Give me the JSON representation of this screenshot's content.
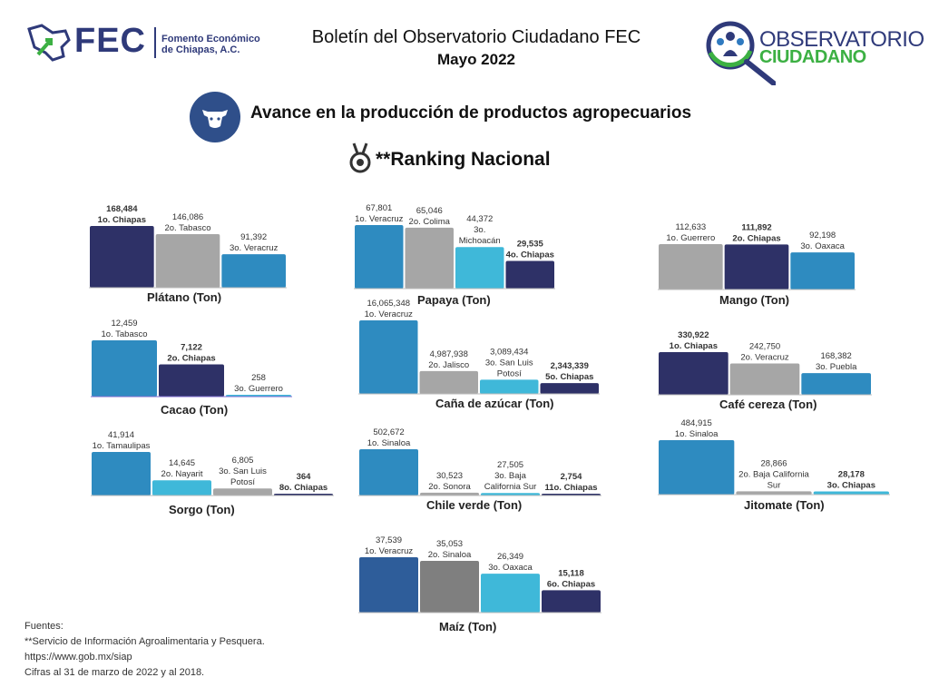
{
  "header": {
    "title": "Boletín del Observatorio Ciudadano FEC",
    "subtitle": "Mayo 2022",
    "fec_mark": "FEC",
    "fec_name_line1": "Fomento Económico",
    "fec_name_line2": "de Chiapas, A.C.",
    "obs_line1": "OBSERVATORIO",
    "obs_line2": "CIUDADANO"
  },
  "section_title": "Avance en la producción de productos agropecuarios",
  "ranking_title": "**Ranking Nacional",
  "colors": {
    "dark": "#2e3167",
    "gray": "#a6a6a6",
    "blue": "#2e8bc0",
    "light": "#3fb8d9",
    "navy": "#2e5d9a",
    "darkgray": "#7f7f7f"
  },
  "chart_data": [
    {
      "type": "bar",
      "title": "Plátano (Ton)",
      "bars": [
        {
          "value": 168484,
          "label": "168,484",
          "rank": "1o.  Chiapas",
          "color": "dark",
          "bold": true
        },
        {
          "value": 146086,
          "label": "146,086",
          "rank": "2o. Tabasco",
          "color": "gray",
          "bold": false
        },
        {
          "value": 91392,
          "label": "91,392",
          "rank": "3o. Veracruz",
          "color": "blue",
          "bold": false
        }
      ]
    },
    {
      "type": "bar",
      "title": "Papaya (Ton)",
      "bars": [
        {
          "value": 67801,
          "label": "67,801",
          "rank": "1o. Veracruz",
          "color": "blue",
          "bold": false
        },
        {
          "value": 65046,
          "label": "65,046",
          "rank": "2o. Colima",
          "color": "gray",
          "bold": false
        },
        {
          "value": 44372,
          "label": "44,372",
          "rank": "3o.\nMichoacán",
          "color": "light",
          "bold": false
        },
        {
          "value": 29535,
          "label": "29,535",
          "rank": "4o. Chiapas",
          "color": "dark",
          "bold": true
        }
      ]
    },
    {
      "type": "bar",
      "title": "Mango (Ton)",
      "bars": [
        {
          "value": 112633,
          "label": "112,633",
          "rank": "1o. Guerrero",
          "color": "gray",
          "bold": false
        },
        {
          "value": 111892,
          "label": "111,892",
          "rank": "2o. Chiapas",
          "color": "dark",
          "bold": true
        },
        {
          "value": 92198,
          "label": "92,198",
          "rank": "3o. Oaxaca",
          "color": "blue",
          "bold": false
        }
      ]
    },
    {
      "type": "bar",
      "title": "Cacao (Ton)",
      "bars": [
        {
          "value": 12459,
          "label": "12,459",
          "rank": "1o. Tabasco",
          "color": "blue",
          "bold": false
        },
        {
          "value": 7122,
          "label": "7,122",
          "rank": "2o. Chiapas",
          "color": "dark",
          "bold": true
        },
        {
          "value": 258,
          "label": "258",
          "rank": "3o. Guerrero",
          "color": "light",
          "bold": false
        }
      ]
    },
    {
      "type": "bar",
      "title": "Caña de azúcar  (Ton)",
      "bars": [
        {
          "value": 16065348,
          "label": "16,065,348",
          "rank": "1o. Veracruz",
          "color": "blue",
          "bold": false
        },
        {
          "value": 4987938,
          "label": "4,987,938",
          "rank": "2o. Jalisco",
          "color": "gray",
          "bold": false
        },
        {
          "value": 3089434,
          "label": "3,089,434",
          "rank": "3o. San Luis\nPotosí",
          "color": "light",
          "bold": false
        },
        {
          "value": 2343339,
          "label": "2,343,339",
          "rank": "5o. Chiapas",
          "color": "dark",
          "bold": true
        }
      ]
    },
    {
      "type": "bar",
      "title": "Café cereza (Ton)",
      "bars": [
        {
          "value": 330922,
          "label": "330,922",
          "rank": "1o. Chiapas",
          "color": "dark",
          "bold": true
        },
        {
          "value": 242750,
          "label": "242,750",
          "rank": "2o. Veracruz",
          "color": "gray",
          "bold": false
        },
        {
          "value": 168382,
          "label": "168,382",
          "rank": "3o. Puebla",
          "color": "blue",
          "bold": false
        }
      ]
    },
    {
      "type": "bar",
      "title": "Sorgo  (Ton)",
      "bars": [
        {
          "value": 41914,
          "label": "41,914",
          "rank": "1o. Tamaulipas",
          "color": "blue",
          "bold": false
        },
        {
          "value": 14645,
          "label": "14,645",
          "rank": "2o. Nayarit",
          "color": "light",
          "bold": false
        },
        {
          "value": 6805,
          "label": "6,805",
          "rank": "3o. San Luis\nPotosí",
          "color": "gray",
          "bold": false
        },
        {
          "value": 364,
          "label": "364",
          "rank": "8o. Chiapas",
          "color": "dark",
          "bold": true
        }
      ]
    },
    {
      "type": "bar",
      "title": "Chile verde (Ton)",
      "bars": [
        {
          "value": 502672,
          "label": "502,672",
          "rank": "1o. Sinaloa",
          "color": "blue",
          "bold": false
        },
        {
          "value": 30523,
          "label": "30,523",
          "rank": "2o. Sonora",
          "color": "gray",
          "bold": false
        },
        {
          "value": 27505,
          "label": "27,505",
          "rank": "3o. Baja\nCalifornia Sur",
          "color": "light",
          "bold": false
        },
        {
          "value": 2754,
          "label": "2,754",
          "rank": "11o. Chiapas",
          "color": "dark",
          "bold": true
        }
      ]
    },
    {
      "type": "bar",
      "title": "Jitomate  (Ton)",
      "bars": [
        {
          "value": 484915,
          "label": "484,915",
          "rank": "1o. Sinaloa",
          "color": "blue",
          "bold": false
        },
        {
          "value": 28866,
          "label": "28,866",
          "rank": "2o. Baja California\nSur",
          "color": "gray",
          "bold": false
        },
        {
          "value": 28178,
          "label": "28,178",
          "rank": "3o. Chiapas",
          "color": "light",
          "bold": true
        }
      ]
    },
    {
      "type": "bar",
      "title": "Maíz (Ton)",
      "bars": [
        {
          "value": 37539,
          "label": "37,539",
          "rank": "1o. Veracruz",
          "color": "navy",
          "bold": false
        },
        {
          "value": 35053,
          "label": "35,053",
          "rank": "2o. Sinaloa",
          "color": "darkgray",
          "bold": false
        },
        {
          "value": 26349,
          "label": "26,349",
          "rank": "3o. Oaxaca",
          "color": "light",
          "bold": false
        },
        {
          "value": 15118,
          "label": "15,118",
          "rank": "6o. Chiapas",
          "color": "dark",
          "bold": true
        }
      ]
    }
  ],
  "sources": {
    "line1": "Fuentes:",
    "line2": "**Servicio de Información Agroalimentaria y Pesquera.",
    "line3": "https://www.gob.mx/siap",
    "line4": "Cifras al 31 de marzo de 2022  y al 2018."
  }
}
